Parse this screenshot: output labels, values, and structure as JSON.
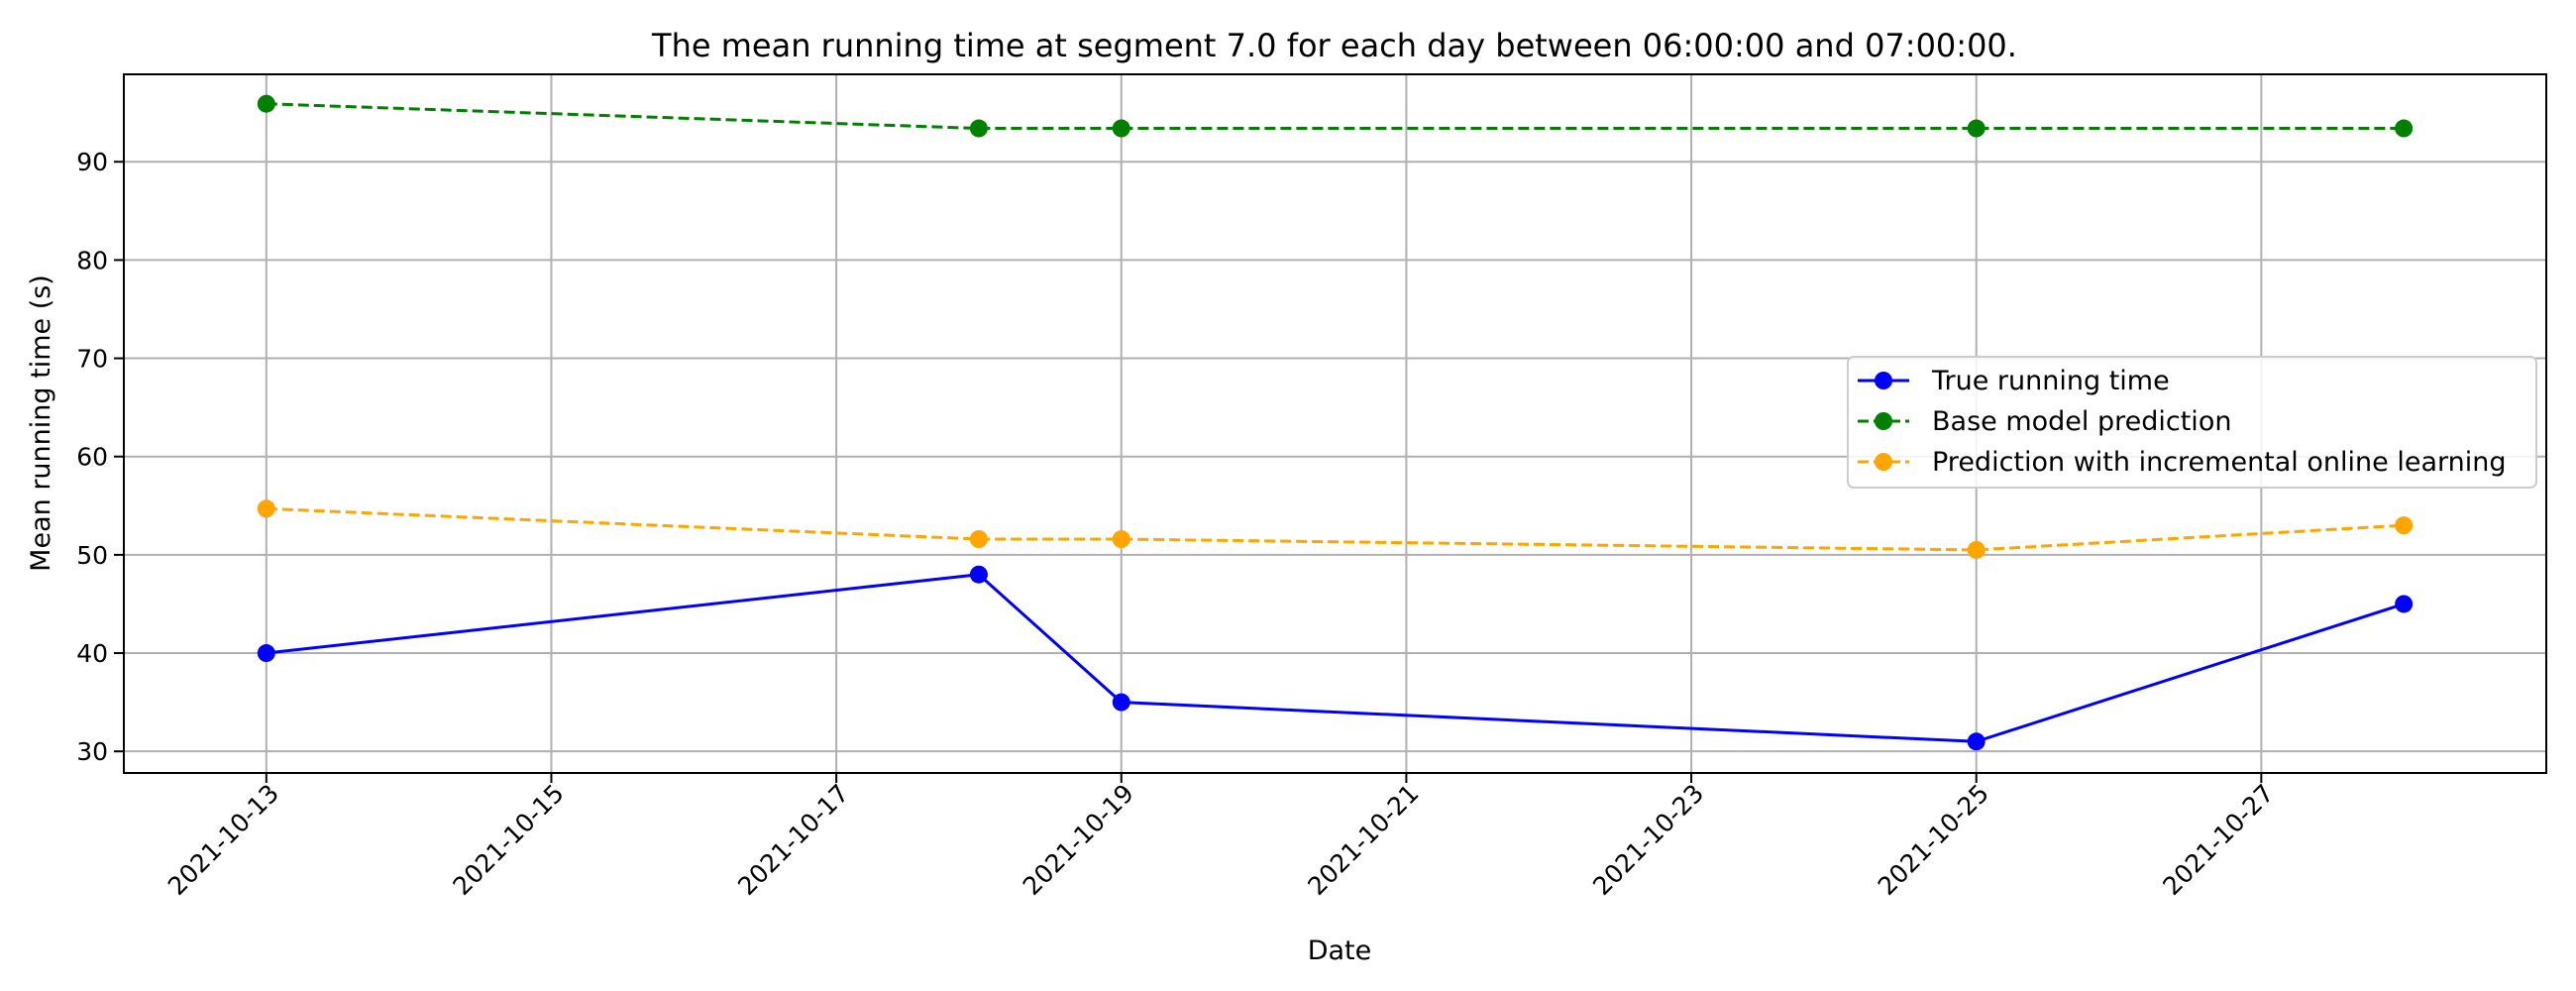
{
  "chart_data": {
    "type": "line",
    "title": "The mean running time at segment 7.0 for each day between 06:00:00 and 07:00:00.",
    "xlabel": "Date",
    "ylabel": "Mean running time (s)",
    "x_ticks": [
      "2021-10-13",
      "2021-10-15",
      "2021-10-17",
      "2021-10-19",
      "2021-10-21",
      "2021-10-23",
      "2021-10-25",
      "2021-10-27"
    ],
    "y_ticks": [
      30,
      40,
      50,
      60,
      70,
      80,
      90
    ],
    "xlim": [
      "2021-10-12",
      "2021-10-29"
    ],
    "ylim": [
      27.8,
      98.9
    ],
    "grid": true,
    "legend_position": "center-right",
    "x": [
      "2021-10-13",
      "2021-10-18",
      "2021-10-19",
      "2021-10-25",
      "2021-10-28"
    ],
    "series": [
      {
        "name": "True running time",
        "values": [
          40.0,
          48.0,
          35.0,
          31.0,
          45.0
        ],
        "color": "#0000ff",
        "dash": "solid"
      },
      {
        "name": "Base model prediction",
        "values": [
          95.9,
          93.4,
          93.4,
          93.4,
          93.4
        ],
        "color": "#008000",
        "dash": "dashed"
      },
      {
        "name": "Prediction with incremental online learning",
        "values": [
          54.7,
          51.6,
          51.6,
          50.5,
          53.0
        ],
        "color": "#ffa500",
        "dash": "dashed"
      }
    ]
  }
}
